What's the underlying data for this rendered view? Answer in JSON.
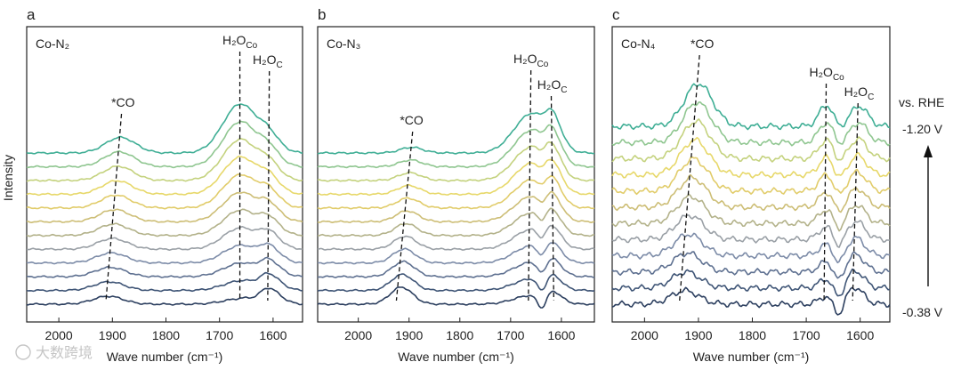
{
  "figure": {
    "y_axis_label": "Intensity",
    "potential_label": "vs. RHE",
    "potential_top": "-1.20 V",
    "potential_bottom": "-0.38 V",
    "watermark": "大数跨境"
  },
  "chart_data": [
    {
      "type": "line",
      "panel": "a",
      "title": "Co-N₂",
      "xlabel": "Wave number (cm⁻¹)",
      "ylabel": "Intensity",
      "x_reversed": true,
      "xlim": [
        2060,
        1545
      ],
      "xticks": [
        2000,
        1900,
        1800,
        1700,
        1600
      ],
      "n_curves": 12,
      "potential_range_V": [
        -0.38,
        -1.2
      ],
      "noise": 0.02,
      "peaks": [
        {
          "label": "*CO",
          "center_start": 1908,
          "center_end": 1885,
          "amp_start": 0.28,
          "amp_end": 0.55,
          "width": 28,
          "dip": false
        },
        {
          "label": "H₂O_Co",
          "center_start": 1662,
          "center_end": 1662,
          "amp_start": 0.18,
          "amp_end": 1.7,
          "width": 32,
          "dip": false
        },
        {
          "label": "H₂O_C",
          "center_start": 1610,
          "center_end": 1610,
          "amp_start": 0.55,
          "amp_end": 0.55,
          "width": 22,
          "dip": false
        },
        {
          "label": "",
          "center_start": 1632,
          "center_end": 1632,
          "amp_start": -0.15,
          "amp_end": -0.1,
          "width": 12,
          "dip": true
        }
      ],
      "annotations": [
        {
          "text": "*CO",
          "x": 1880
        },
        {
          "text": "H₂O",
          "sub": "Co",
          "x": 1662
        },
        {
          "text": "H₂O",
          "sub": "C",
          "x": 1610
        }
      ],
      "guides": [
        {
          "x_top": 1883,
          "x_bottom": 1912
        },
        {
          "x_top": 1662,
          "x_bottom": 1662
        },
        {
          "x_top": 1607,
          "x_bottom": 1610
        }
      ]
    },
    {
      "type": "line",
      "panel": "b",
      "title": "Co-N₃",
      "xlabel": "Wave number (cm⁻¹)",
      "ylabel": "Intensity",
      "x_reversed": true,
      "xlim": [
        2080,
        1535
      ],
      "xticks": [
        2000,
        1900,
        1800,
        1700,
        1600
      ],
      "n_curves": 12,
      "potential_range_V": [
        -0.38,
        -1.2
      ],
      "noise": 0.02,
      "peaks": [
        {
          "label": "*CO",
          "center_start": 1915,
          "center_end": 1895,
          "amp_start": 0.6,
          "amp_end": 0.2,
          "width": 22,
          "dip": false
        },
        {
          "label": "H₂O_Co",
          "center_start": 1660,
          "center_end": 1660,
          "amp_start": 0.3,
          "amp_end": 1.35,
          "width": 34,
          "dip": false
        },
        {
          "label": "H₂O_C",
          "center_start": 1618,
          "center_end": 1618,
          "amp_start": 0.35,
          "amp_end": 0.9,
          "width": 18,
          "dip": false
        },
        {
          "label": "",
          "center_start": 1638,
          "center_end": 1638,
          "amp_start": -0.55,
          "amp_end": -0.2,
          "width": 9,
          "dip": true
        }
      ],
      "annotations": [
        {
          "text": "*CO",
          "x": 1895
        },
        {
          "text": "H₂O",
          "sub": "Co",
          "x": 1660
        },
        {
          "text": "H₂O",
          "sub": "C",
          "x": 1618
        }
      ],
      "guides": [
        {
          "x_top": 1893,
          "x_bottom": 1925
        },
        {
          "x_top": 1660,
          "x_bottom": 1665
        },
        {
          "x_top": 1620,
          "x_bottom": 1615
        }
      ]
    },
    {
      "type": "line",
      "panel": "c",
      "title": "Co-N₄",
      "xlabel": "Wave number (cm⁻¹)",
      "ylabel": "Intensity",
      "x_reversed": true,
      "xlim": [
        2060,
        1545
      ],
      "xticks": [
        2000,
        1900,
        1800,
        1700,
        1600
      ],
      "n_curves": 12,
      "potential_range_V": [
        -0.38,
        -1.2
      ],
      "noise": 0.09,
      "peaks": [
        {
          "label": "*CO",
          "center_start": 1925,
          "center_end": 1900,
          "amp_start": 0.6,
          "amp_end": 1.9,
          "width": 26,
          "dip": false
        },
        {
          "label": "H₂O_Co",
          "center_start": 1662,
          "center_end": 1662,
          "amp_start": 0.35,
          "amp_end": 0.95,
          "width": 14,
          "dip": false
        },
        {
          "label": "H₂O_C",
          "center_start": 1610,
          "center_end": 1602,
          "amp_start": 0.75,
          "amp_end": 0.9,
          "width": 16,
          "dip": false
        },
        {
          "label": "",
          "center_start": 1640,
          "center_end": 1640,
          "amp_start": -0.65,
          "amp_end": -0.25,
          "width": 9,
          "dip": true
        }
      ],
      "annotations": [
        {
          "text": "*CO",
          "x": 1893
        },
        {
          "text": "H₂O",
          "sub": "Co",
          "x": 1662
        },
        {
          "text": "H₂O",
          "sub": "C",
          "x": 1602
        }
      ],
      "guides": [
        {
          "x_top": 1898,
          "x_bottom": 1935
        },
        {
          "x_top": 1663,
          "x_bottom": 1667
        },
        {
          "x_top": 1604,
          "x_bottom": 1614
        }
      ]
    }
  ]
}
